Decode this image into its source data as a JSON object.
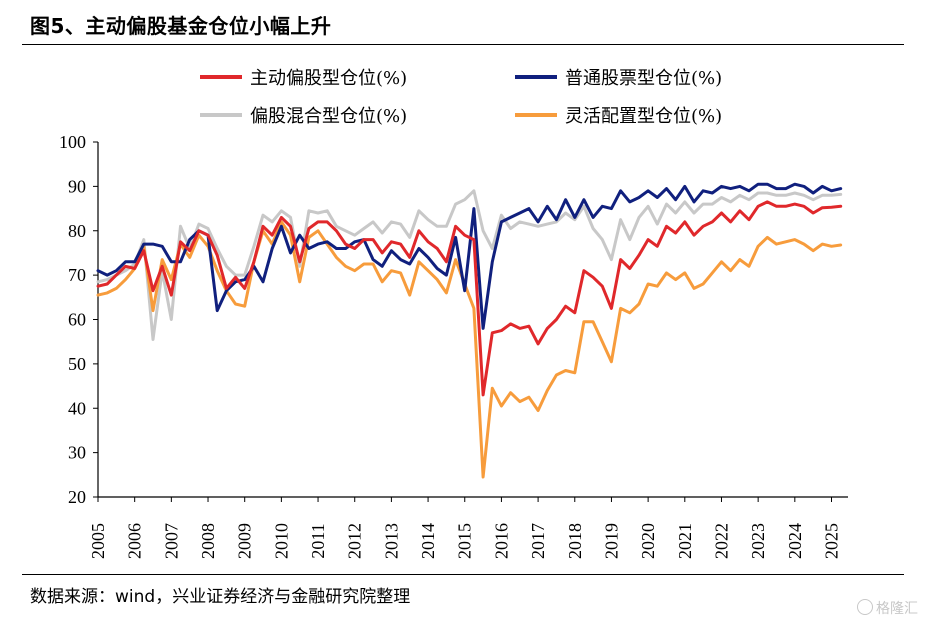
{
  "header": {
    "title": "图5、主动偏股基金仓位小幅上升"
  },
  "footer": {
    "source": "数据来源：wind，兴业证券经济与金融研究院整理",
    "watermark": "格隆汇"
  },
  "colors": {
    "active": "#e0282b",
    "common": "#10207e",
    "mixed": "#c8c8c8",
    "flexible": "#f79c3c"
  },
  "chart_data": {
    "type": "line",
    "title": "",
    "xlabel": "",
    "ylabel": "",
    "ylim": [
      20,
      100
    ],
    "yticks": [
      20,
      30,
      40,
      50,
      60,
      70,
      80,
      90,
      100
    ],
    "xticks": [
      "2005",
      "2006",
      "2007",
      "2008",
      "2009",
      "2010",
      "2011",
      "2012",
      "2013",
      "2014",
      "2015",
      "2016",
      "2017",
      "2018",
      "2019",
      "2020",
      "2021",
      "2022",
      "2023",
      "2024",
      "2025"
    ],
    "xlim": [
      2005.0,
      2025.45
    ],
    "legend_position": "top",
    "grid": false,
    "series": [
      {
        "name": "主动偏股型仓位(%)",
        "color": "#e0282b",
        "x": [
          2005.0,
          2005.25,
          2005.5,
          2005.75,
          2006.0,
          2006.25,
          2006.5,
          2006.75,
          2007.0,
          2007.25,
          2007.5,
          2007.75,
          2008.0,
          2008.25,
          2008.5,
          2008.75,
          2009.0,
          2009.25,
          2009.5,
          2009.75,
          2010.0,
          2010.25,
          2010.5,
          2010.75,
          2011.0,
          2011.25,
          2011.5,
          2011.75,
          2012.0,
          2012.25,
          2012.5,
          2012.75,
          2013.0,
          2013.25,
          2013.5,
          2013.75,
          2014.0,
          2014.25,
          2014.5,
          2014.75,
          2015.0,
          2015.25,
          2015.5,
          2015.75,
          2016.0,
          2016.25,
          2016.5,
          2016.75,
          2017.0,
          2017.25,
          2017.5,
          2017.75,
          2018.0,
          2018.25,
          2018.5,
          2018.75,
          2019.0,
          2019.25,
          2019.5,
          2019.75,
          2020.0,
          2020.25,
          2020.5,
          2020.75,
          2021.0,
          2021.25,
          2021.5,
          2021.75,
          2022.0,
          2022.25,
          2022.5,
          2022.75,
          2023.0,
          2023.25,
          2023.5,
          2023.75,
          2024.0,
          2024.25,
          2024.5,
          2024.75,
          2025.0,
          2025.25
        ],
        "values": [
          67.5,
          68,
          70,
          72,
          71.5,
          75.5,
          66.5,
          72,
          65.5,
          77.5,
          75.5,
          80,
          79,
          74.5,
          67,
          69.5,
          67,
          73,
          81,
          79,
          83,
          81,
          73,
          80.5,
          82,
          82,
          80,
          77,
          76,
          78,
          78,
          75,
          77.5,
          77,
          74,
          80,
          77.5,
          76,
          73,
          81,
          79,
          78,
          43,
          57,
          57.5,
          59,
          58,
          58.5,
          54.5,
          58,
          60,
          63,
          61.5,
          71,
          69.5,
          67.5,
          62.5,
          73.5,
          71.5,
          74.5,
          78,
          76.5,
          81,
          79.5,
          82,
          79,
          81,
          82,
          84,
          82,
          84.5,
          82.5,
          85.5,
          86.5,
          85.5,
          85.5,
          86,
          85.5,
          84,
          85.2,
          85.3,
          85.5
        ]
      },
      {
        "name": "普通股票型仓位(%)",
        "color": "#10207e",
        "x": [
          2005.0,
          2005.25,
          2005.5,
          2005.75,
          2006.0,
          2006.25,
          2006.5,
          2006.75,
          2007.0,
          2007.25,
          2007.5,
          2007.75,
          2008.0,
          2008.25,
          2008.5,
          2008.75,
          2009.0,
          2009.25,
          2009.5,
          2009.75,
          2010.0,
          2010.25,
          2010.5,
          2010.75,
          2011.0,
          2011.25,
          2011.5,
          2011.75,
          2012.0,
          2012.25,
          2012.5,
          2012.75,
          2013.0,
          2013.25,
          2013.5,
          2013.75,
          2014.0,
          2014.25,
          2014.5,
          2014.75,
          2015.0,
          2015.25,
          2015.5,
          2015.75,
          2016.0,
          2016.25,
          2016.5,
          2016.75,
          2017.0,
          2017.25,
          2017.5,
          2017.75,
          2018.0,
          2018.25,
          2018.5,
          2018.75,
          2019.0,
          2019.25,
          2019.5,
          2019.75,
          2020.0,
          2020.25,
          2020.5,
          2020.75,
          2021.0,
          2021.25,
          2021.5,
          2021.75,
          2022.0,
          2022.25,
          2022.5,
          2022.75,
          2023.0,
          2023.25,
          2023.5,
          2023.75,
          2024.0,
          2024.25,
          2024.5,
          2024.75,
          2025.0,
          2025.25
        ],
        "values": [
          71,
          70,
          71,
          73,
          73,
          77,
          77,
          76.5,
          73,
          73,
          78,
          80,
          79,
          62,
          66.5,
          68.5,
          69,
          72,
          68.5,
          76,
          81,
          75,
          79,
          76,
          77,
          77.5,
          76,
          76,
          77.5,
          78,
          73.5,
          72,
          75.5,
          73.5,
          72.5,
          76,
          74,
          71.5,
          70,
          78.5,
          66.5,
          85,
          58,
          73,
          82,
          83,
          84,
          85,
          82,
          85.5,
          82.5,
          87,
          83,
          87,
          83,
          85.5,
          85,
          89,
          86.5,
          87.5,
          89,
          87.5,
          89.5,
          87,
          90,
          86.5,
          89,
          88.5,
          90,
          89.5,
          90,
          89,
          90.5,
          90.5,
          89.5,
          89.5,
          90.5,
          90,
          88.5,
          90,
          89,
          89.5
        ]
      },
      {
        "name": "偏股混合型仓位(%)",
        "color": "#c8c8c8",
        "x": [
          2005.0,
          2005.25,
          2005.5,
          2005.75,
          2006.0,
          2006.25,
          2006.5,
          2006.75,
          2007.0,
          2007.25,
          2007.5,
          2007.75,
          2008.0,
          2008.25,
          2008.5,
          2008.75,
          2009.0,
          2009.25,
          2009.5,
          2009.75,
          2010.0,
          2010.25,
          2010.5,
          2010.75,
          2011.0,
          2011.25,
          2011.5,
          2011.75,
          2012.0,
          2012.25,
          2012.5,
          2012.75,
          2013.0,
          2013.25,
          2013.5,
          2013.75,
          2014.0,
          2014.25,
          2014.5,
          2014.75,
          2015.0,
          2015.25,
          2015.5,
          2015.75,
          2016.0,
          2016.25,
          2016.5,
          2016.75,
          2017.0,
          2017.25,
          2017.5,
          2017.75,
          2018.0,
          2018.25,
          2018.5,
          2018.75,
          2019.0,
          2019.25,
          2019.5,
          2019.75,
          2020.0,
          2020.25,
          2020.5,
          2020.75,
          2021.0,
          2021.25,
          2021.5,
          2021.75,
          2022.0,
          2022.25,
          2022.5,
          2022.75,
          2023.0,
          2023.25,
          2023.5,
          2023.75,
          2024.0,
          2024.25,
          2024.5,
          2024.75,
          2025.0,
          2025.25
        ],
        "values": [
          68.5,
          69,
          70,
          71,
          72.5,
          78,
          55.5,
          71,
          60,
          81,
          76,
          81.5,
          80.5,
          76,
          72,
          70,
          70,
          76.5,
          83.5,
          82,
          84.5,
          83,
          72,
          84.5,
          84,
          84.5,
          81,
          80,
          79,
          80.5,
          82,
          79.5,
          82,
          81.5,
          78.5,
          84.5,
          82.5,
          81,
          81,
          86,
          87,
          89,
          80,
          76,
          83.5,
          80.5,
          82,
          81.5,
          81,
          81.5,
          82,
          84,
          82.5,
          85.5,
          80.5,
          78,
          73.5,
          82.5,
          78,
          83,
          85.5,
          81.5,
          86,
          84,
          86.5,
          84,
          86,
          86,
          87.5,
          86.5,
          88,
          87,
          88.5,
          88.5,
          88,
          88,
          88.5,
          88,
          87,
          88,
          88,
          88.2
        ]
      },
      {
        "name": "灵活配置型仓位(%)",
        "color": "#f79c3c",
        "x": [
          2005.0,
          2005.25,
          2005.5,
          2005.75,
          2006.0,
          2006.25,
          2006.5,
          2006.75,
          2007.0,
          2007.25,
          2007.5,
          2007.75,
          2008.0,
          2008.25,
          2008.5,
          2008.75,
          2009.0,
          2009.25,
          2009.5,
          2009.75,
          2010.0,
          2010.25,
          2010.5,
          2010.75,
          2011.0,
          2011.25,
          2011.5,
          2011.75,
          2012.0,
          2012.25,
          2012.5,
          2012.75,
          2013.0,
          2013.25,
          2013.5,
          2013.75,
          2014.0,
          2014.25,
          2014.5,
          2014.75,
          2015.0,
          2015.25,
          2015.5,
          2015.75,
          2016.0,
          2016.25,
          2016.5,
          2016.75,
          2017.0,
          2017.25,
          2017.5,
          2017.75,
          2018.0,
          2018.25,
          2018.5,
          2018.75,
          2019.0,
          2019.25,
          2019.5,
          2019.75,
          2020.0,
          2020.25,
          2020.5,
          2020.75,
          2021.0,
          2021.25,
          2021.5,
          2021.75,
          2022.0,
          2022.25,
          2022.5,
          2022.75,
          2023.0,
          2023.25,
          2023.5,
          2023.75,
          2024.0,
          2024.25,
          2024.5,
          2024.75,
          2025.0,
          2025.25
        ],
        "values": [
          65.5,
          66,
          67,
          69,
          71.5,
          76.5,
          62,
          73.5,
          69,
          77,
          74,
          79,
          76.5,
          71,
          66.5,
          63.5,
          63,
          73,
          80,
          77,
          82,
          79,
          68.5,
          78.5,
          80,
          77,
          74,
          72,
          71,
          72.5,
          72.5,
          68.5,
          71,
          70.5,
          65.5,
          73,
          71,
          69,
          66,
          73.5,
          68,
          62.5,
          24.5,
          44.5,
          40.5,
          43.5,
          41.5,
          42.5,
          39.5,
          44,
          47.5,
          48.5,
          48,
          59.5,
          59.5,
          55,
          50.5,
          62.5,
          61.5,
          63.5,
          68,
          67.5,
          70.5,
          69,
          70.5,
          67,
          68,
          70.5,
          73,
          71,
          73.5,
          72,
          76.5,
          78.5,
          77,
          77.5,
          78,
          77,
          75.5,
          77,
          76.5,
          76.8
        ]
      }
    ]
  }
}
